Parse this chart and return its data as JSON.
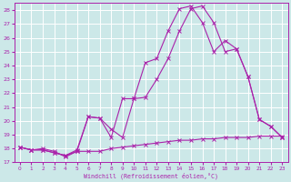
{
  "xlabel": "Windchill (Refroidissement éolien,°C)",
  "xlim": [
    -0.5,
    23.5
  ],
  "ylim": [
    17,
    28.5
  ],
  "xticks": [
    0,
    1,
    2,
    3,
    4,
    5,
    6,
    7,
    8,
    9,
    10,
    11,
    12,
    13,
    14,
    15,
    16,
    17,
    18,
    19,
    20,
    21,
    22,
    23
  ],
  "yticks": [
    17,
    18,
    19,
    20,
    21,
    22,
    23,
    24,
    25,
    26,
    27,
    28
  ],
  "background_color": "#cce8e8",
  "grid_color": "#ffffff",
  "line_color": "#aa22aa",
  "lines": [
    {
      "x": [
        0,
        1,
        2,
        3,
        4,
        5,
        6,
        7,
        8,
        9,
        10,
        11,
        12,
        13,
        14,
        15,
        16,
        17,
        18,
        19,
        20,
        21,
        22,
        23
      ],
      "y": [
        18.1,
        17.9,
        17.9,
        17.7,
        17.5,
        17.8,
        17.8,
        17.8,
        18.0,
        18.1,
        18.2,
        18.3,
        18.4,
        18.5,
        18.6,
        18.6,
        18.7,
        18.7,
        18.8,
        18.8,
        18.8,
        18.9,
        18.9,
        18.9
      ]
    },
    {
      "x": [
        0,
        1,
        2,
        3,
        4,
        5,
        6,
        7,
        8,
        9,
        10,
        11,
        12,
        13,
        14,
        15,
        16,
        17,
        18,
        19,
        20,
        21,
        22,
        23
      ],
      "y": [
        18.1,
        17.9,
        18.0,
        17.8,
        17.4,
        17.8,
        20.3,
        20.2,
        18.8,
        21.6,
        21.6,
        24.2,
        24.5,
        26.5,
        28.1,
        28.3,
        27.1,
        25.0,
        25.8,
        25.2,
        23.2,
        20.1,
        19.6,
        18.8
      ]
    },
    {
      "x": [
        0,
        1,
        2,
        3,
        4,
        5,
        6,
        7,
        8,
        9,
        10,
        11,
        12,
        13,
        14,
        15,
        16,
        17,
        18,
        19,
        20,
        21,
        22,
        23
      ],
      "y": [
        18.1,
        17.9,
        17.9,
        17.7,
        17.5,
        17.9,
        20.3,
        20.2,
        19.4,
        18.8,
        21.6,
        21.7,
        23.0,
        24.5,
        26.5,
        28.1,
        28.3,
        27.1,
        25.0,
        25.2,
        23.2,
        20.1,
        19.6,
        18.8
      ]
    }
  ]
}
